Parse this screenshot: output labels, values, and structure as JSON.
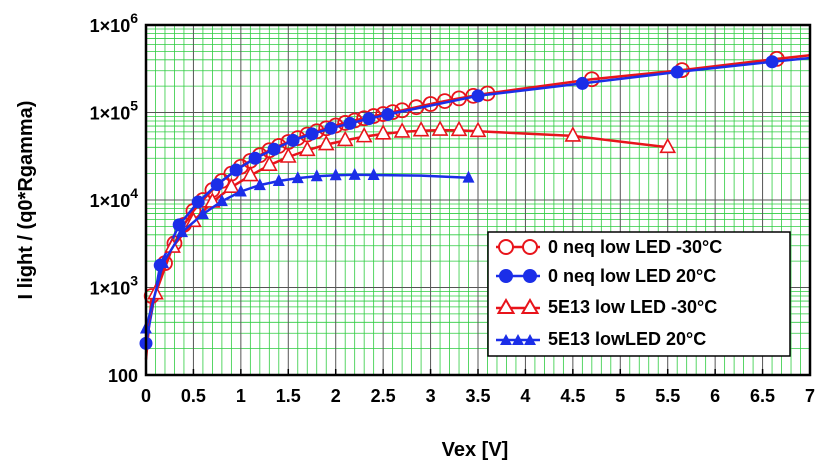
{
  "chart_data": {
    "type": "line",
    "xlabel": "Vex [V]",
    "ylabel": "I light / (q0*Rgamma)",
    "xlim": [
      0,
      7
    ],
    "ylim": [
      100,
      1000000
    ],
    "yscale": "log",
    "grid": true,
    "legend_position": "lower-right",
    "x_ticks": [
      "0",
      "0.5",
      "1",
      "1.5",
      "2",
      "2.5",
      "3",
      "3.5",
      "4",
      "4.5",
      "5",
      "5.5",
      "6",
      "6.5",
      "7"
    ],
    "y_ticks": [
      {
        "value": 100,
        "base": "100",
        "exp": ""
      },
      {
        "value": 1000,
        "base": "1×10",
        "exp": "3"
      },
      {
        "value": 10000,
        "base": "1×10",
        "exp": "4"
      },
      {
        "value": 100000,
        "base": "1×10",
        "exp": "5"
      },
      {
        "value": 1000000,
        "base": "1×10",
        "exp": "6"
      }
    ],
    "series": [
      {
        "name": "0 neq low LED -30°C",
        "color": "#e8141b",
        "marker": "circle-open",
        "x": [
          0.0,
          0.06,
          0.2,
          0.3,
          0.4,
          0.5,
          0.6,
          0.7,
          0.8,
          0.9,
          1.0,
          1.1,
          1.2,
          1.3,
          1.4,
          1.5,
          1.6,
          1.7,
          1.8,
          1.9,
          2.0,
          2.1,
          2.2,
          2.3,
          2.4,
          2.5,
          2.6,
          2.7,
          2.85,
          3.0,
          3.15,
          3.3,
          3.45,
          3.6,
          4.7,
          5.65,
          6.65
        ],
        "y": [
          150,
          800,
          1900,
          3200,
          5200,
          7500,
          10000,
          13000,
          16500,
          20000,
          24000,
          28000,
          32500,
          37000,
          41500,
          46000,
          51000,
          56000,
          61000,
          66000,
          71000,
          76000,
          81000,
          86000,
          91000,
          96000,
          101000,
          106000,
          115000,
          125000,
          135000,
          145000,
          155000,
          165000,
          240000,
          305000,
          410000
        ],
        "markers_at": [
          0.06,
          0.2,
          0.3,
          0.4,
          0.5,
          0.6,
          0.7,
          0.8,
          0.9,
          1.0,
          1.1,
          1.2,
          1.3,
          1.4,
          1.5,
          1.6,
          1.7,
          1.8,
          1.9,
          2.0,
          2.1,
          2.2,
          2.3,
          2.4,
          2.5,
          2.6,
          2.7,
          2.85,
          3.0,
          3.15,
          3.3,
          3.45,
          3.6,
          4.7,
          5.65,
          6.65
        ],
        "line_end": [
          7.0,
          450000
        ]
      },
      {
        "name": "0 neq low LED 20°C",
        "color": "#1b2ee8",
        "marker": "circle-filled",
        "x": [
          0.0,
          0.15,
          0.35,
          0.55,
          0.75,
          0.95,
          1.15,
          1.35,
          1.55,
          1.75,
          1.95,
          2.15,
          2.35,
          2.55,
          3.5,
          4.6,
          5.6,
          6.6
        ],
        "y": [
          230,
          1800,
          5200,
          9500,
          15000,
          22000,
          30000,
          38000,
          48000,
          57000,
          66000,
          75000,
          85000,
          95000,
          155000,
          215000,
          290000,
          380000
        ],
        "markers_at": [
          0.0,
          0.15,
          0.35,
          0.55,
          0.75,
          0.95,
          1.15,
          1.35,
          1.55,
          1.75,
          1.95,
          2.15,
          2.35,
          2.55,
          3.5,
          4.6,
          5.6,
          6.6
        ],
        "line_end": [
          7.0,
          420000
        ]
      },
      {
        "name": "5E13 low LED -30°C",
        "color": "#e8141b",
        "marker": "triangle-open",
        "x": [
          0.0,
          0.1,
          0.28,
          0.5,
          0.7,
          0.9,
          1.1,
          1.3,
          1.5,
          1.7,
          1.9,
          2.1,
          2.3,
          2.5,
          2.7,
          2.9,
          3.1,
          3.3,
          3.5,
          4.5,
          5.5
        ],
        "y": [
          320,
          850,
          2900,
          5700,
          9500,
          14000,
          19000,
          25000,
          31000,
          37000,
          43000,
          48000,
          53000,
          57000,
          60000,
          62000,
          63000,
          62500,
          61000,
          54000,
          40000
        ],
        "markers_at": [
          0.1,
          0.28,
          0.5,
          0.7,
          0.9,
          1.1,
          1.3,
          1.5,
          1.7,
          1.9,
          2.1,
          2.3,
          2.5,
          2.7,
          2.9,
          3.1,
          3.3,
          3.5,
          4.5,
          5.5
        ]
      },
      {
        "name": "5E13 lowLED 20°C",
        "color": "#1b2ee8",
        "marker": "triangle-filled",
        "x": [
          0.0,
          0.18,
          0.38,
          0.6,
          0.8,
          1.0,
          1.2,
          1.4,
          1.6,
          1.8,
          2.0,
          2.2,
          2.4,
          2.9,
          3.4
        ],
        "y": [
          340,
          1900,
          4300,
          6900,
          9700,
          12500,
          14800,
          16500,
          17800,
          18700,
          19200,
          19400,
          19300,
          19000,
          18000
        ],
        "markers_at": [
          0.0,
          0.18,
          0.38,
          0.6,
          0.8,
          1.0,
          1.2,
          1.4,
          1.6,
          1.8,
          2.0,
          2.2,
          2.4,
          3.4
        ]
      }
    ]
  }
}
